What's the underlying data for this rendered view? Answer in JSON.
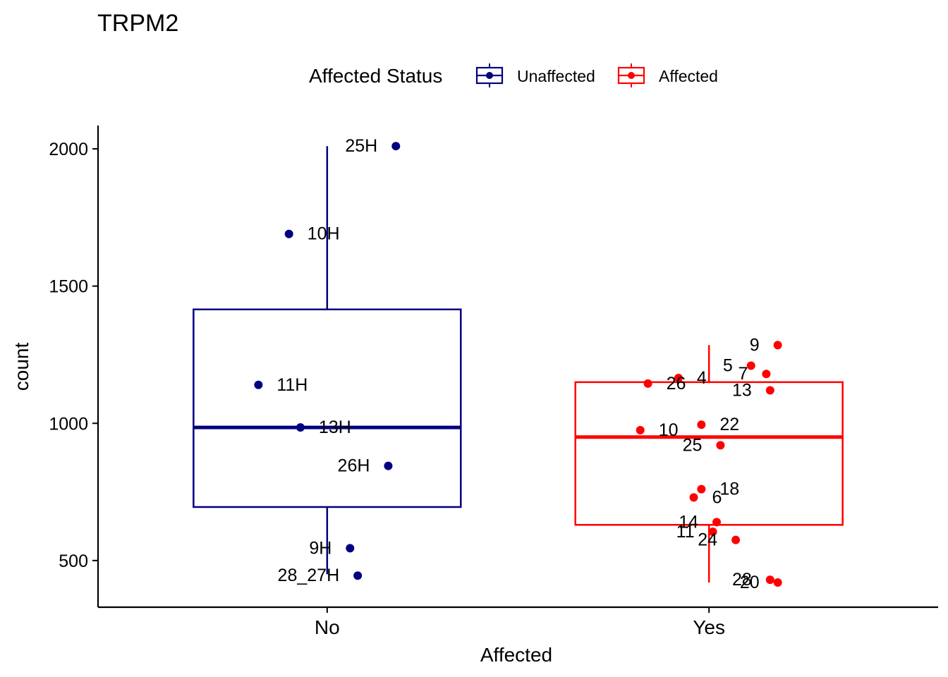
{
  "chart_data": {
    "type": "boxplot",
    "title": "TRPM2",
    "xlabel": "Affected",
    "ylabel": "count",
    "categories": [
      "No",
      "Yes"
    ],
    "ylim": [
      330,
      2085
    ],
    "yticks": [
      500,
      1000,
      1500,
      2000
    ],
    "legend": {
      "title": "Affected Status",
      "position": "top",
      "items": [
        {
          "label": "Unaffected",
          "color": "#000080"
        },
        {
          "label": "Affected",
          "color": "#ff0000"
        }
      ]
    },
    "series": [
      {
        "name": "Unaffected",
        "category": "No",
        "color": "#000080",
        "box": {
          "lower_whisker": 450,
          "q1": 695,
          "median": 985,
          "q3": 1415,
          "upper_whisker": 2010
        },
        "points": [
          {
            "label": "25H",
            "x_jitter": 0.18,
            "y": 2010
          },
          {
            "label": "10H",
            "x_jitter": -0.1,
            "y": 1690
          },
          {
            "label": "11H",
            "x_jitter": -0.18,
            "y": 1140
          },
          {
            "label": "13H",
            "x_jitter": -0.07,
            "y": 985
          },
          {
            "label": "26H",
            "x_jitter": 0.16,
            "y": 845
          },
          {
            "label": "9H",
            "x_jitter": 0.06,
            "y": 545
          },
          {
            "label": "28_27H",
            "x_jitter": 0.08,
            "y": 445
          }
        ]
      },
      {
        "name": "Affected",
        "category": "Yes",
        "color": "#ff0000",
        "box": {
          "lower_whisker": 420,
          "q1": 630,
          "median": 950,
          "q3": 1150,
          "upper_whisker": 1285
        },
        "points": [
          {
            "label": "9",
            "x_jitter": 0.18,
            "y": 1285
          },
          {
            "label": "5",
            "x_jitter": 0.11,
            "y": 1210
          },
          {
            "label": "7",
            "x_jitter": 0.15,
            "y": 1180
          },
          {
            "label": "4",
            "x_jitter": -0.08,
            "y": 1165
          },
          {
            "label": "26",
            "x_jitter": -0.16,
            "y": 1145
          },
          {
            "label": "13",
            "x_jitter": 0.16,
            "y": 1120
          },
          {
            "label": "22",
            "x_jitter": -0.02,
            "y": 995
          },
          {
            "label": "10",
            "x_jitter": -0.18,
            "y": 975
          },
          {
            "label": "25",
            "x_jitter": 0.03,
            "y": 920
          },
          {
            "label": "18",
            "x_jitter": -0.02,
            "y": 760
          },
          {
            "label": "6",
            "x_jitter": -0.04,
            "y": 730
          },
          {
            "label": "14",
            "x_jitter": 0.02,
            "y": 640
          },
          {
            "label": "11",
            "x_jitter": 0.01,
            "y": 605
          },
          {
            "label": "24",
            "x_jitter": 0.07,
            "y": 575
          },
          {
            "label": "28",
            "x_jitter": 0.16,
            "y": 430
          },
          {
            "label": "20",
            "x_jitter": 0.18,
            "y": 420
          }
        ]
      }
    ]
  }
}
